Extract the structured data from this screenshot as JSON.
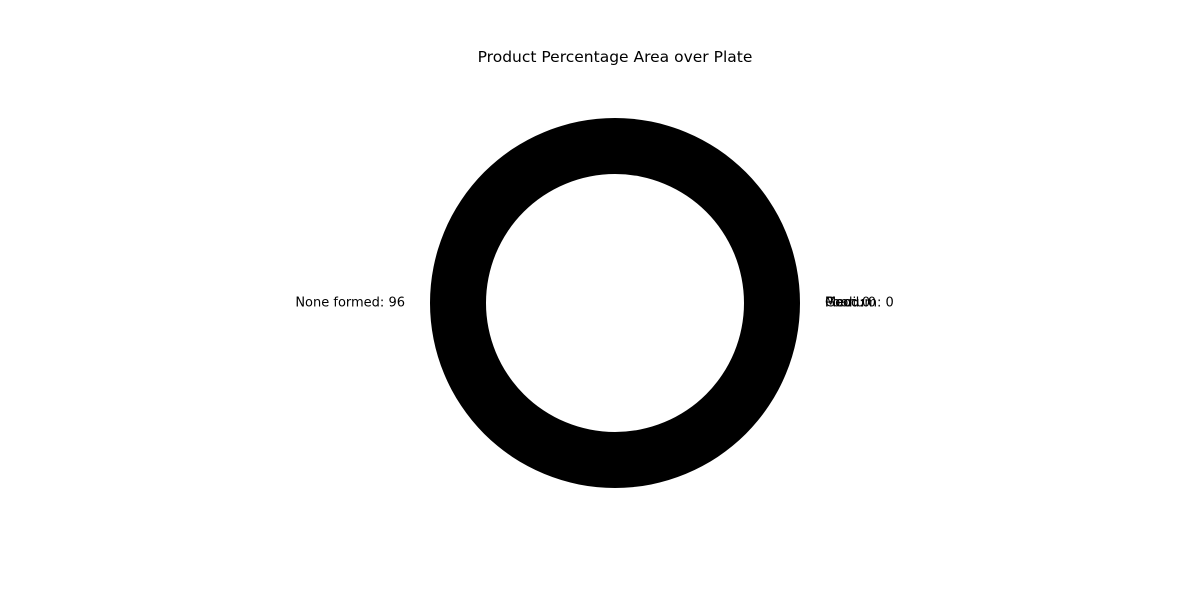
{
  "chart_data": {
    "type": "pie",
    "style": "donut",
    "title": "Product Percentage Area over Plate",
    "categories": [
      "None formed",
      "Medium",
      "Good",
      "Poor"
    ],
    "values": [
      96,
      0,
      0,
      0
    ],
    "labels": [
      "None formed: 96",
      "Medium: 0",
      "Good: 0",
      "Poor: 0"
    ],
    "colors": [
      "#000000",
      "#000000",
      "#000000",
      "#000000"
    ],
    "legend": "none"
  }
}
